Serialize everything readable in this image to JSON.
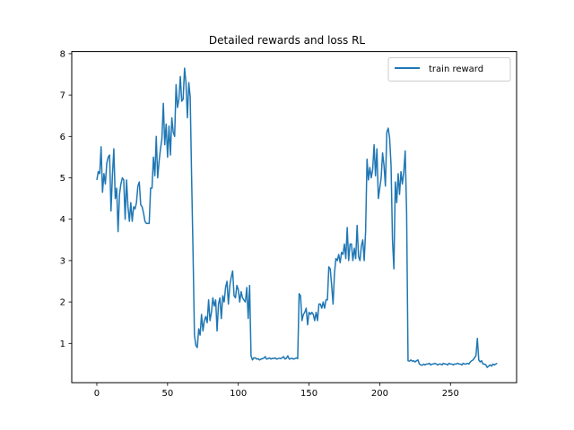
{
  "chart_data": {
    "type": "line",
    "title": "Detailed rewards and loss RL",
    "xlabel": "",
    "ylabel": "",
    "xlim": [
      -17.75,
      296.75
    ],
    "ylim": [
      0.05,
      8.05
    ],
    "xticks": [
      0,
      50,
      100,
      150,
      200,
      250
    ],
    "yticks": [
      1,
      2,
      3,
      4,
      5,
      6,
      7,
      8
    ],
    "grid": false,
    "legend_position": "upper-right",
    "series": [
      {
        "name": "train reward",
        "color": "#1f77b4",
        "x": [
          0,
          1,
          2,
          3,
          4,
          5,
          6,
          7,
          8,
          9,
          10,
          11,
          12,
          13,
          14,
          15,
          16,
          17,
          18,
          19,
          20,
          21,
          22,
          23,
          24,
          25,
          26,
          27,
          28,
          29,
          30,
          31,
          32,
          33,
          34,
          35,
          36,
          37,
          38,
          39,
          40,
          41,
          42,
          43,
          44,
          45,
          46,
          47,
          48,
          49,
          50,
          51,
          52,
          53,
          54,
          55,
          56,
          57,
          58,
          59,
          60,
          61,
          62,
          63,
          64,
          65,
          66,
          67,
          68,
          69,
          70,
          71,
          72,
          73,
          74,
          75,
          76,
          77,
          78,
          79,
          80,
          81,
          82,
          83,
          84,
          85,
          86,
          87,
          88,
          89,
          90,
          91,
          92,
          93,
          94,
          95,
          96,
          97,
          98,
          99,
          100,
          101,
          102,
          103,
          104,
          105,
          106,
          107,
          108,
          109,
          110,
          111,
          112,
          113,
          114,
          115,
          116,
          117,
          118,
          119,
          120,
          121,
          122,
          123,
          124,
          125,
          126,
          127,
          128,
          129,
          130,
          131,
          132,
          133,
          134,
          135,
          136,
          137,
          138,
          139,
          140,
          141,
          142,
          143,
          144,
          145,
          146,
          147,
          148,
          149,
          150,
          151,
          152,
          153,
          154,
          155,
          156,
          157,
          158,
          159,
          160,
          161,
          162,
          163,
          164,
          165,
          166,
          167,
          168,
          169,
          170,
          171,
          172,
          173,
          174,
          175,
          176,
          177,
          178,
          179,
          180,
          181,
          182,
          183,
          184,
          185,
          186,
          187,
          188,
          189,
          190,
          191,
          192,
          193,
          194,
          195,
          196,
          197,
          198,
          199,
          200,
          201,
          202,
          203,
          204,
          205,
          206,
          207,
          208,
          209,
          210,
          211,
          212,
          213,
          214,
          215,
          216,
          217,
          218,
          219,
          220,
          221,
          222,
          223,
          224,
          225,
          226,
          227,
          228,
          229,
          230,
          231,
          232,
          233,
          234,
          235,
          236,
          237,
          238,
          239,
          240,
          241,
          242,
          243,
          244,
          245,
          246,
          247,
          248,
          249,
          250,
          251,
          252,
          253,
          254,
          255,
          256,
          257,
          258,
          259,
          260,
          261,
          262,
          263,
          264,
          265,
          266,
          267,
          268,
          269,
          270,
          271,
          272,
          273,
          274,
          275,
          276,
          277,
          278,
          279,
          280,
          281,
          282,
          283
        ],
        "y": [
          4.95,
          5.15,
          5.1,
          5.75,
          4.65,
          5.1,
          4.85,
          5.35,
          5.5,
          5.55,
          4.2,
          5.05,
          5.7,
          4.5,
          4.75,
          3.7,
          4.6,
          4.85,
          5.0,
          4.95,
          4.0,
          4.95,
          4.3,
          3.95,
          4.4,
          3.95,
          4.3,
          4.25,
          4.4,
          4.8,
          4.9,
          4.35,
          4.3,
          4.15,
          3.95,
          3.9,
          3.9,
          3.9,
          4.75,
          4.75,
          5.5,
          5.05,
          6.0,
          5.0,
          5.4,
          5.7,
          5.95,
          6.8,
          5.8,
          6.3,
          5.5,
          6.25,
          5.55,
          6.45,
          6.1,
          6.0,
          7.25,
          6.7,
          6.9,
          7.45,
          6.85,
          6.9,
          7.65,
          7.3,
          6.45,
          7.3,
          6.95,
          5.0,
          3.2,
          1.2,
          0.95,
          0.9,
          1.35,
          1.2,
          1.7,
          1.3,
          1.55,
          1.65,
          1.5,
          2.05,
          1.55,
          1.75,
          2.1,
          1.9,
          2.05,
          1.3,
          1.95,
          2.1,
          1.6,
          2.15,
          2.0,
          2.35,
          2.5,
          1.95,
          2.4,
          2.6,
          2.75,
          2.15,
          2.1,
          2.4,
          2.3,
          2.0,
          2.25,
          2.1,
          2.05,
          2.0,
          2.35,
          1.6,
          2.4,
          0.7,
          0.6,
          0.65,
          0.65,
          0.62,
          0.63,
          0.6,
          0.62,
          0.63,
          0.64,
          0.68,
          0.62,
          0.63,
          0.65,
          0.62,
          0.64,
          0.63,
          0.65,
          0.62,
          0.63,
          0.64,
          0.63,
          0.65,
          0.68,
          0.62,
          0.64,
          0.7,
          0.62,
          0.63,
          0.64,
          0.62,
          0.63,
          0.65,
          0.63,
          2.2,
          2.15,
          1.55,
          1.7,
          1.75,
          1.85,
          1.45,
          1.75,
          1.7,
          1.75,
          1.7,
          1.55,
          1.75,
          1.55,
          1.95,
          1.95,
          1.85,
          2.0,
          1.85,
          2.05,
          2.05,
          2.85,
          2.8,
          2.4,
          1.95,
          2.7,
          3.05,
          3.0,
          3.15,
          2.95,
          3.2,
          3.15,
          3.4,
          3.05,
          3.8,
          3.0,
          3.4,
          3.4,
          3.0,
          3.3,
          3.05,
          3.85,
          3.1,
          3.0,
          3.35,
          3.5,
          3.0,
          3.7,
          5.45,
          4.95,
          5.25,
          5.0,
          5.2,
          5.8,
          5.05,
          5.7,
          4.5,
          4.75,
          5.0,
          5.6,
          5.3,
          4.8,
          6.1,
          6.2,
          5.95,
          5.3,
          3.5,
          2.8,
          4.9,
          4.4,
          5.1,
          4.6,
          5.15,
          4.85,
          5.15,
          5.65,
          4.15,
          0.58,
          0.57,
          0.6,
          0.57,
          0.58,
          0.55,
          0.58,
          0.6,
          0.5,
          0.48,
          0.47,
          0.5,
          0.48,
          0.5,
          0.5,
          0.52,
          0.48,
          0.5,
          0.5,
          0.52,
          0.5,
          0.48,
          0.5,
          0.5,
          0.48,
          0.52,
          0.5,
          0.5,
          0.48,
          0.52,
          0.5,
          0.5,
          0.48,
          0.5,
          0.5,
          0.52,
          0.5,
          0.5,
          0.48,
          0.52,
          0.5,
          0.5,
          0.52,
          0.5,
          0.55,
          0.58,
          0.6,
          0.65,
          0.7,
          1.12,
          0.6,
          0.55,
          0.58,
          0.5,
          0.5,
          0.48,
          0.42,
          0.45,
          0.48,
          0.45,
          0.5,
          0.48,
          0.5,
          0.52
        ]
      }
    ]
  }
}
